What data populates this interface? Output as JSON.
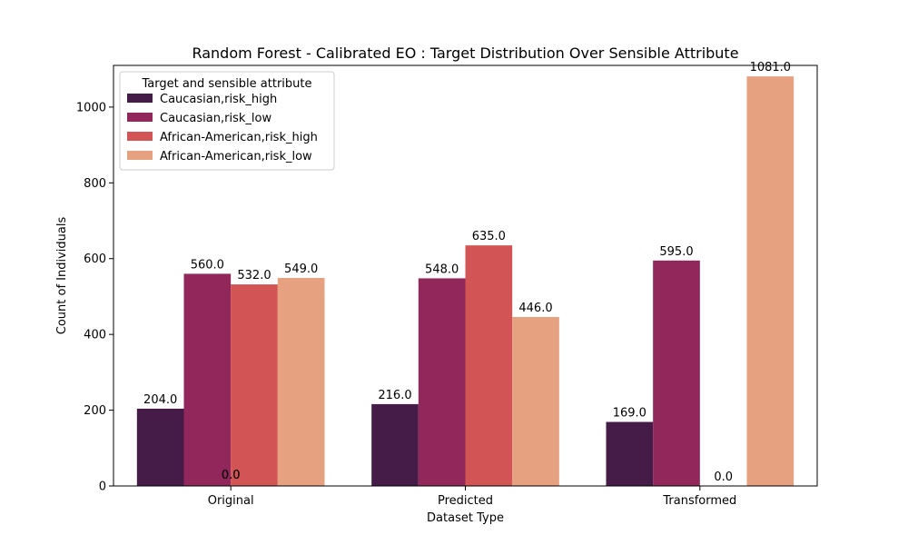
{
  "chart_data": {
    "type": "bar",
    "title": "Random Forest - Calibrated EO : Target Distribution Over Sensible Attribute",
    "xlabel": "Dataset Type",
    "ylabel": "Count of Individuals",
    "categories": [
      "Original",
      "Predicted",
      "Transformed"
    ],
    "ylim": [
      0,
      1110
    ],
    "yticks": [
      0,
      200,
      400,
      600,
      800,
      1000
    ],
    "grid": false,
    "legend": {
      "title": "Target and sensible attribute",
      "placement": "top-left"
    },
    "series": [
      {
        "name": "Caucasian,risk_high",
        "color": "#451c47",
        "values": [
          204,
          216,
          169
        ],
        "labels": [
          "204.0",
          "216.0",
          "169.0"
        ]
      },
      {
        "name": "Caucasian,risk_low",
        "color": "#91275b",
        "values": [
          560,
          548,
          595
        ],
        "labels": [
          "560.0",
          "548.0",
          "595.0"
        ]
      },
      {
        "name": "African-American,risk_high",
        "color": "#d25455",
        "values": [
          532,
          635,
          0
        ],
        "labels": [
          "532.0",
          "635.0",
          "0.0"
        ]
      },
      {
        "name": "African-American,risk_low",
        "color": "#e6a181",
        "values": [
          549,
          446,
          1081
        ],
        "labels": [
          "549.0",
          "446.0",
          "1081.0"
        ]
      }
    ],
    "annotations": [
      {
        "category": "Original",
        "text": "0.0"
      },
      {
        "category": "Original",
        "text": "0.0"
      }
    ]
  }
}
